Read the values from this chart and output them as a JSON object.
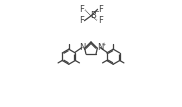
{
  "bg": "#ffffff",
  "lc": "#404040",
  "lw": 0.9,
  "fs": 6.0,
  "fig_w": 1.82,
  "fig_h": 1.07,
  "dpi": 100,
  "xlim": [
    -1.0,
    11.0
  ],
  "ylim": [
    -0.5,
    6.5
  ]
}
